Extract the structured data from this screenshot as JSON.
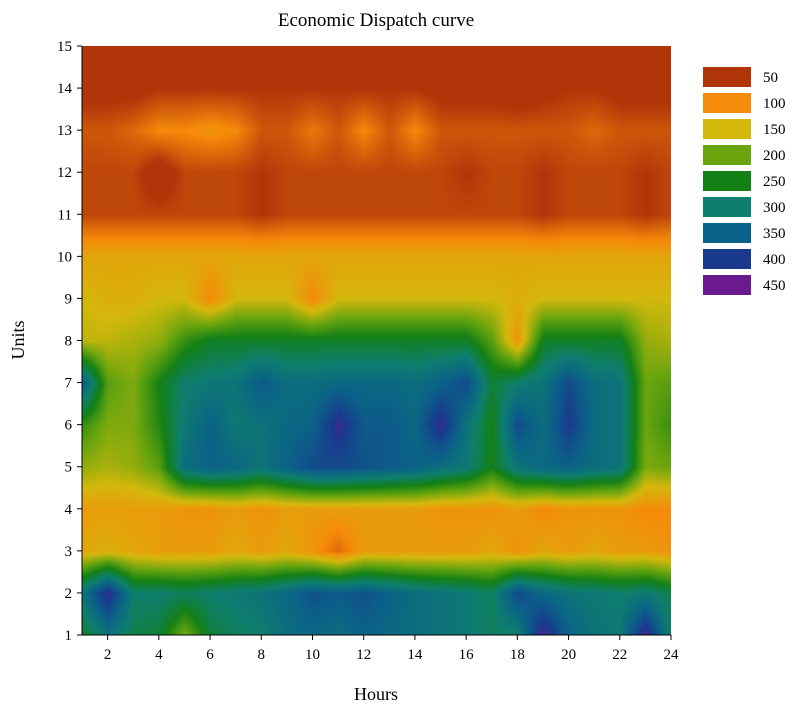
{
  "chart_data": {
    "type": "heatmap",
    "title": "Economic Dispatch curve",
    "xlabel": "Hours",
    "ylabel": "Units",
    "xlim": [
      1,
      24
    ],
    "ylim": [
      1,
      15
    ],
    "x_ticks": [
      2,
      4,
      6,
      8,
      10,
      12,
      14,
      16,
      18,
      20,
      22,
      24
    ],
    "y_ticks": [
      1,
      2,
      3,
      4,
      5,
      6,
      7,
      8,
      9,
      10,
      11,
      12,
      13,
      14,
      15
    ],
    "legend_position": "right",
    "levels": [
      {
        "label": "50",
        "value": 50,
        "color": "#b0360a"
      },
      {
        "label": "100",
        "value": 100,
        "color": "#f68a0a"
      },
      {
        "label": "150",
        "value": 150,
        "color": "#d4b80c"
      },
      {
        "label": "200",
        "value": 200,
        "color": "#6aa50e"
      },
      {
        "label": "250",
        "value": 250,
        "color": "#138016"
      },
      {
        "label": "300",
        "value": 300,
        "color": "#0e7e6e"
      },
      {
        "label": "350",
        "value": 350,
        "color": "#0b6288"
      },
      {
        "label": "400",
        "value": 400,
        "color": "#1a3a8e"
      },
      {
        "label": "450",
        "value": 450,
        "color": "#6a1a8e"
      }
    ],
    "hours": [
      1,
      2,
      3,
      4,
      5,
      6,
      7,
      8,
      9,
      10,
      11,
      12,
      13,
      14,
      15,
      16,
      17,
      18,
      19,
      20,
      21,
      22,
      23,
      24
    ],
    "units": [
      1,
      2,
      3,
      4,
      5,
      6,
      7,
      8,
      9,
      10,
      11,
      12,
      13,
      14,
      15
    ],
    "z": [
      [
        260,
        320,
        280,
        270,
        190,
        270,
        290,
        300,
        330,
        340,
        330,
        350,
        340,
        330,
        320,
        310,
        290,
        300,
        430,
        350,
        320,
        310,
        430,
        290
      ],
      [
        320,
        420,
        300,
        300,
        290,
        300,
        310,
        320,
        340,
        370,
        360,
        370,
        350,
        330,
        320,
        310,
        290,
        380,
        340,
        320,
        310,
        300,
        310,
        280
      ],
      [
        130,
        140,
        130,
        120,
        120,
        120,
        130,
        120,
        130,
        110,
        80,
        120,
        120,
        120,
        120,
        120,
        130,
        110,
        130,
        120,
        130,
        120,
        120,
        110
      ],
      [
        120,
        120,
        120,
        120,
        110,
        110,
        120,
        110,
        120,
        120,
        120,
        120,
        120,
        120,
        110,
        110,
        110,
        120,
        100,
        110,
        110,
        110,
        100,
        100
      ],
      [
        180,
        170,
        180,
        210,
        330,
        350,
        340,
        320,
        350,
        380,
        380,
        370,
        360,
        350,
        330,
        310,
        250,
        320,
        340,
        350,
        330,
        320,
        190,
        200
      ],
      [
        230,
        190,
        190,
        240,
        310,
        350,
        310,
        320,
        340,
        350,
        420,
        360,
        360,
        340,
        420,
        320,
        250,
        380,
        330,
        400,
        330,
        320,
        200,
        230
      ],
      [
        360,
        210,
        190,
        250,
        300,
        310,
        320,
        360,
        330,
        330,
        340,
        340,
        340,
        330,
        350,
        380,
        270,
        300,
        320,
        380,
        330,
        320,
        200,
        210
      ],
      [
        160,
        160,
        170,
        180,
        230,
        260,
        260,
        260,
        260,
        260,
        260,
        260,
        260,
        260,
        260,
        260,
        210,
        110,
        260,
        260,
        260,
        260,
        180,
        170
      ],
      [
        150,
        140,
        140,
        150,
        150,
        100,
        150,
        150,
        150,
        100,
        150,
        150,
        150,
        150,
        150,
        150,
        150,
        140,
        150,
        150,
        150,
        150,
        150,
        150
      ],
      [
        130,
        130,
        130,
        130,
        130,
        130,
        130,
        130,
        130,
        130,
        130,
        130,
        130,
        130,
        130,
        130,
        130,
        130,
        130,
        130,
        130,
        130,
        130,
        130
      ],
      [
        60,
        60,
        60,
        60,
        60,
        60,
        60,
        50,
        60,
        60,
        60,
        60,
        60,
        60,
        60,
        60,
        60,
        60,
        50,
        60,
        60,
        60,
        50,
        60
      ],
      [
        60,
        60,
        60,
        30,
        60,
        60,
        60,
        50,
        60,
        60,
        60,
        60,
        60,
        60,
        60,
        50,
        60,
        60,
        50,
        60,
        60,
        60,
        50,
        60
      ],
      [
        70,
        70,
        80,
        100,
        100,
        110,
        100,
        70,
        70,
        90,
        70,
        100,
        70,
        100,
        70,
        70,
        70,
        70,
        70,
        70,
        80,
        70,
        70,
        70
      ],
      [
        40,
        40,
        40,
        50,
        50,
        50,
        50,
        50,
        50,
        50,
        50,
        50,
        50,
        50,
        40,
        40,
        40,
        30,
        40,
        50,
        50,
        40,
        40,
        40
      ],
      [
        40,
        40,
        40,
        20,
        40,
        50,
        40,
        40,
        40,
        40,
        40,
        40,
        40,
        40,
        40,
        40,
        40,
        30,
        40,
        40,
        40,
        40,
        40,
        40
      ]
    ]
  }
}
